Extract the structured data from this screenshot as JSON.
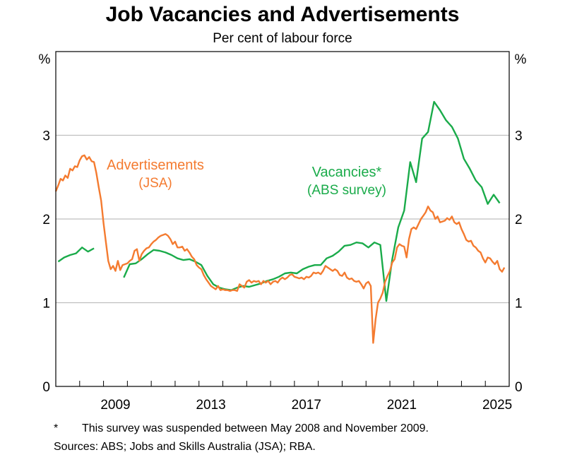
{
  "title": "Job Vacancies and Advertisements",
  "subtitle": "Per cent of labour force",
  "footnote": {
    "marker": "*",
    "text": "This survey was suspended between May 2008 and November 2009."
  },
  "sources": "Sources: ABS; Jobs and Skills Australia (JSA); RBA.",
  "colors": {
    "advertisements": "#f47b30",
    "vacancies": "#1aab4a",
    "grid": "#bfbfbf",
    "axis": "#000000"
  },
  "chart_data": {
    "type": "line",
    "title": "Job Vacancies and Advertisements",
    "subtitle": "Per cent of labour force",
    "xlabel": "",
    "ylabel": "%",
    "ylabel_right": "%",
    "xlim": [
      2007.0,
      2026.0
    ],
    "ylim": [
      0,
      4
    ],
    "yticks": [
      0,
      1,
      2,
      3
    ],
    "xtick_labels": [
      "2009",
      "2013",
      "2017",
      "2021",
      "2025"
    ],
    "grid": true,
    "legend": "inline annotations",
    "annotations": [
      {
        "text": "Advertisements",
        "subtext": "(JSA)",
        "series": "Advertisements"
      },
      {
        "text": "Vacancies*",
        "subtext": "(ABS survey)",
        "series": "Vacancies"
      }
    ],
    "series": [
      {
        "name": "Advertisements (JSA)",
        "color": "#f47b30",
        "points": [
          [
            2007.0,
            2.33
          ],
          [
            2007.1,
            2.4
          ],
          [
            2007.2,
            2.48
          ],
          [
            2007.3,
            2.46
          ],
          [
            2007.4,
            2.52
          ],
          [
            2007.5,
            2.49
          ],
          [
            2007.6,
            2.6
          ],
          [
            2007.7,
            2.58
          ],
          [
            2007.8,
            2.63
          ],
          [
            2007.9,
            2.62
          ],
          [
            2008.0,
            2.7
          ],
          [
            2008.1,
            2.75
          ],
          [
            2008.2,
            2.76
          ],
          [
            2008.3,
            2.71
          ],
          [
            2008.4,
            2.74
          ],
          [
            2008.5,
            2.69
          ],
          [
            2008.6,
            2.68
          ],
          [
            2008.7,
            2.55
          ],
          [
            2008.8,
            2.38
          ],
          [
            2008.9,
            2.22
          ],
          [
            2009.0,
            1.95
          ],
          [
            2009.1,
            1.72
          ],
          [
            2009.2,
            1.5
          ],
          [
            2009.3,
            1.4
          ],
          [
            2009.4,
            1.44
          ],
          [
            2009.5,
            1.38
          ],
          [
            2009.6,
            1.5
          ],
          [
            2009.7,
            1.39
          ],
          [
            2009.8,
            1.45
          ],
          [
            2009.9,
            1.46
          ],
          [
            2010.0,
            1.47
          ],
          [
            2010.1,
            1.5
          ],
          [
            2010.2,
            1.52
          ],
          [
            2010.3,
            1.62
          ],
          [
            2010.4,
            1.64
          ],
          [
            2010.5,
            1.5
          ],
          [
            2010.6,
            1.58
          ],
          [
            2010.7,
            1.62
          ],
          [
            2010.8,
            1.65
          ],
          [
            2010.9,
            1.66
          ],
          [
            2011.0,
            1.7
          ],
          [
            2011.1,
            1.73
          ],
          [
            2011.2,
            1.75
          ],
          [
            2011.3,
            1.78
          ],
          [
            2011.4,
            1.8
          ],
          [
            2011.5,
            1.81
          ],
          [
            2011.6,
            1.82
          ],
          [
            2011.7,
            1.8
          ],
          [
            2011.8,
            1.76
          ],
          [
            2011.9,
            1.7
          ],
          [
            2012.0,
            1.73
          ],
          [
            2012.1,
            1.66
          ],
          [
            2012.2,
            1.66
          ],
          [
            2012.3,
            1.67
          ],
          [
            2012.4,
            1.62
          ],
          [
            2012.5,
            1.64
          ],
          [
            2012.6,
            1.6
          ],
          [
            2012.7,
            1.55
          ],
          [
            2012.8,
            1.52
          ],
          [
            2012.9,
            1.45
          ],
          [
            2013.0,
            1.42
          ],
          [
            2013.1,
            1.4
          ],
          [
            2013.2,
            1.33
          ],
          [
            2013.3,
            1.28
          ],
          [
            2013.4,
            1.24
          ],
          [
            2013.5,
            1.2
          ],
          [
            2013.6,
            1.18
          ],
          [
            2013.7,
            1.16
          ],
          [
            2013.8,
            1.2
          ],
          [
            2013.9,
            1.15
          ],
          [
            2014.0,
            1.16
          ],
          [
            2014.1,
            1.15
          ],
          [
            2014.2,
            1.15
          ],
          [
            2014.3,
            1.14
          ],
          [
            2014.4,
            1.15
          ],
          [
            2014.5,
            1.15
          ],
          [
            2014.6,
            1.14
          ],
          [
            2014.7,
            1.22
          ],
          [
            2014.8,
            1.2
          ],
          [
            2014.9,
            1.18
          ],
          [
            2015.0,
            1.25
          ],
          [
            2015.1,
            1.27
          ],
          [
            2015.2,
            1.24
          ],
          [
            2015.3,
            1.26
          ],
          [
            2015.4,
            1.25
          ],
          [
            2015.5,
            1.26
          ],
          [
            2015.6,
            1.22
          ],
          [
            2015.7,
            1.26
          ],
          [
            2015.8,
            1.24
          ],
          [
            2015.9,
            1.26
          ],
          [
            2016.0,
            1.22
          ],
          [
            2016.1,
            1.25
          ],
          [
            2016.2,
            1.26
          ],
          [
            2016.3,
            1.24
          ],
          [
            2016.4,
            1.28
          ],
          [
            2016.5,
            1.3
          ],
          [
            2016.6,
            1.28
          ],
          [
            2016.7,
            1.3
          ],
          [
            2016.8,
            1.33
          ],
          [
            2016.9,
            1.34
          ],
          [
            2017.0,
            1.31
          ],
          [
            2017.1,
            1.3
          ],
          [
            2017.2,
            1.29
          ],
          [
            2017.3,
            1.3
          ],
          [
            2017.4,
            1.28
          ],
          [
            2017.5,
            1.31
          ],
          [
            2017.6,
            1.3
          ],
          [
            2017.7,
            1.32
          ],
          [
            2017.8,
            1.36
          ],
          [
            2017.9,
            1.35
          ],
          [
            2018.0,
            1.36
          ],
          [
            2018.1,
            1.34
          ],
          [
            2018.2,
            1.38
          ],
          [
            2018.3,
            1.44
          ],
          [
            2018.4,
            1.42
          ],
          [
            2018.5,
            1.4
          ],
          [
            2018.6,
            1.38
          ],
          [
            2018.7,
            1.4
          ],
          [
            2018.8,
            1.38
          ],
          [
            2018.9,
            1.33
          ],
          [
            2019.0,
            1.32
          ],
          [
            2019.1,
            1.36
          ],
          [
            2019.2,
            1.3
          ],
          [
            2019.3,
            1.28
          ],
          [
            2019.4,
            1.29
          ],
          [
            2019.5,
            1.26
          ],
          [
            2019.6,
            1.25
          ],
          [
            2019.7,
            1.26
          ],
          [
            2019.8,
            1.22
          ],
          [
            2019.9,
            1.17
          ],
          [
            2020.0,
            1.23
          ],
          [
            2020.1,
            1.25
          ],
          [
            2020.2,
            1.2
          ],
          [
            2020.3,
            0.52
          ],
          [
            2020.4,
            0.8
          ],
          [
            2020.5,
            1.0
          ],
          [
            2020.6,
            1.05
          ],
          [
            2020.7,
            1.12
          ],
          [
            2020.8,
            1.25
          ],
          [
            2020.9,
            1.32
          ],
          [
            2021.0,
            1.38
          ],
          [
            2021.1,
            1.48
          ],
          [
            2021.2,
            1.52
          ],
          [
            2021.3,
            1.66
          ],
          [
            2021.4,
            1.7
          ],
          [
            2021.5,
            1.68
          ],
          [
            2021.6,
            1.67
          ],
          [
            2021.7,
            1.54
          ],
          [
            2021.8,
            1.76
          ],
          [
            2021.9,
            1.88
          ],
          [
            2022.0,
            1.9
          ],
          [
            2022.1,
            1.88
          ],
          [
            2022.2,
            1.94
          ],
          [
            2022.3,
            2.0
          ],
          [
            2022.4,
            2.04
          ],
          [
            2022.5,
            2.08
          ],
          [
            2022.6,
            2.15
          ],
          [
            2022.7,
            2.1
          ],
          [
            2022.8,
            2.08
          ],
          [
            2022.9,
            2.0
          ],
          [
            2023.0,
            2.03
          ],
          [
            2023.1,
            1.96
          ],
          [
            2023.2,
            1.97
          ],
          [
            2023.3,
            1.98
          ],
          [
            2023.4,
            2.01
          ],
          [
            2023.5,
            1.99
          ],
          [
            2023.6,
            2.03
          ],
          [
            2023.7,
            1.96
          ],
          [
            2023.8,
            1.94
          ],
          [
            2023.9,
            1.96
          ],
          [
            2024.0,
            1.88
          ],
          [
            2024.1,
            1.82
          ],
          [
            2024.2,
            1.75
          ],
          [
            2024.3,
            1.73
          ],
          [
            2024.4,
            1.74
          ],
          [
            2024.5,
            1.68
          ],
          [
            2024.6,
            1.66
          ],
          [
            2024.7,
            1.62
          ],
          [
            2024.8,
            1.6
          ],
          [
            2024.9,
            1.53
          ],
          [
            2025.0,
            1.48
          ],
          [
            2025.1,
            1.54
          ],
          [
            2025.2,
            1.53
          ],
          [
            2025.3,
            1.49
          ],
          [
            2025.4,
            1.46
          ],
          [
            2025.5,
            1.5
          ],
          [
            2025.6,
            1.4
          ],
          [
            2025.7,
            1.37
          ],
          [
            2025.8,
            1.42
          ]
        ]
      },
      {
        "name": "Vacancies* (ABS survey)",
        "color": "#1aab4a",
        "segments": [
          [
            [
              2007.1,
              1.49
            ],
            [
              2007.35,
              1.54
            ],
            [
              2007.6,
              1.57
            ],
            [
              2007.85,
              1.59
            ],
            [
              2008.1,
              1.66
            ],
            [
              2008.35,
              1.61
            ],
            [
              2008.6,
              1.65
            ]
          ],
          [
            [
              2009.85,
              1.3
            ],
            [
              2010.1,
              1.46
            ],
            [
              2010.35,
              1.47
            ],
            [
              2010.6,
              1.52
            ],
            [
              2010.85,
              1.58
            ],
            [
              2011.1,
              1.63
            ],
            [
              2011.35,
              1.62
            ],
            [
              2011.6,
              1.6
            ],
            [
              2011.85,
              1.57
            ],
            [
              2012.1,
              1.53
            ],
            [
              2012.35,
              1.51
            ],
            [
              2012.6,
              1.52
            ],
            [
              2012.85,
              1.49
            ],
            [
              2013.1,
              1.45
            ],
            [
              2013.35,
              1.32
            ],
            [
              2013.6,
              1.22
            ],
            [
              2013.85,
              1.18
            ],
            [
              2014.1,
              1.16
            ],
            [
              2014.35,
              1.15
            ],
            [
              2014.6,
              1.18
            ],
            [
              2014.85,
              1.2
            ],
            [
              2015.1,
              1.19
            ],
            [
              2015.35,
              1.21
            ],
            [
              2015.6,
              1.23
            ],
            [
              2015.85,
              1.26
            ],
            [
              2016.1,
              1.28
            ],
            [
              2016.35,
              1.31
            ],
            [
              2016.6,
              1.35
            ],
            [
              2016.85,
              1.36
            ],
            [
              2017.1,
              1.35
            ],
            [
              2017.35,
              1.4
            ],
            [
              2017.6,
              1.43
            ],
            [
              2017.85,
              1.45
            ],
            [
              2018.1,
              1.45
            ],
            [
              2018.35,
              1.53
            ],
            [
              2018.6,
              1.56
            ],
            [
              2018.85,
              1.61
            ],
            [
              2019.1,
              1.68
            ],
            [
              2019.35,
              1.69
            ],
            [
              2019.6,
              1.72
            ],
            [
              2019.85,
              1.71
            ],
            [
              2020.1,
              1.66
            ],
            [
              2020.35,
              1.72
            ],
            [
              2020.6,
              1.69
            ],
            [
              2020.85,
              1.02
            ],
            [
              2021.1,
              1.52
            ],
            [
              2021.35,
              1.9
            ],
            [
              2021.6,
              2.1
            ],
            [
              2021.85,
              2.68
            ],
            [
              2022.1,
              2.44
            ],
            [
              2022.35,
              2.96
            ],
            [
              2022.6,
              3.04
            ],
            [
              2022.85,
              3.4
            ],
            [
              2023.1,
              3.3
            ],
            [
              2023.35,
              3.18
            ],
            [
              2023.6,
              3.1
            ],
            [
              2023.85,
              2.96
            ],
            [
              2024.1,
              2.72
            ],
            [
              2024.35,
              2.6
            ],
            [
              2024.6,
              2.46
            ],
            [
              2024.85,
              2.38
            ],
            [
              2025.1,
              2.18
            ],
            [
              2025.35,
              2.29
            ],
            [
              2025.6,
              2.19
            ]
          ]
        ]
      }
    ]
  }
}
